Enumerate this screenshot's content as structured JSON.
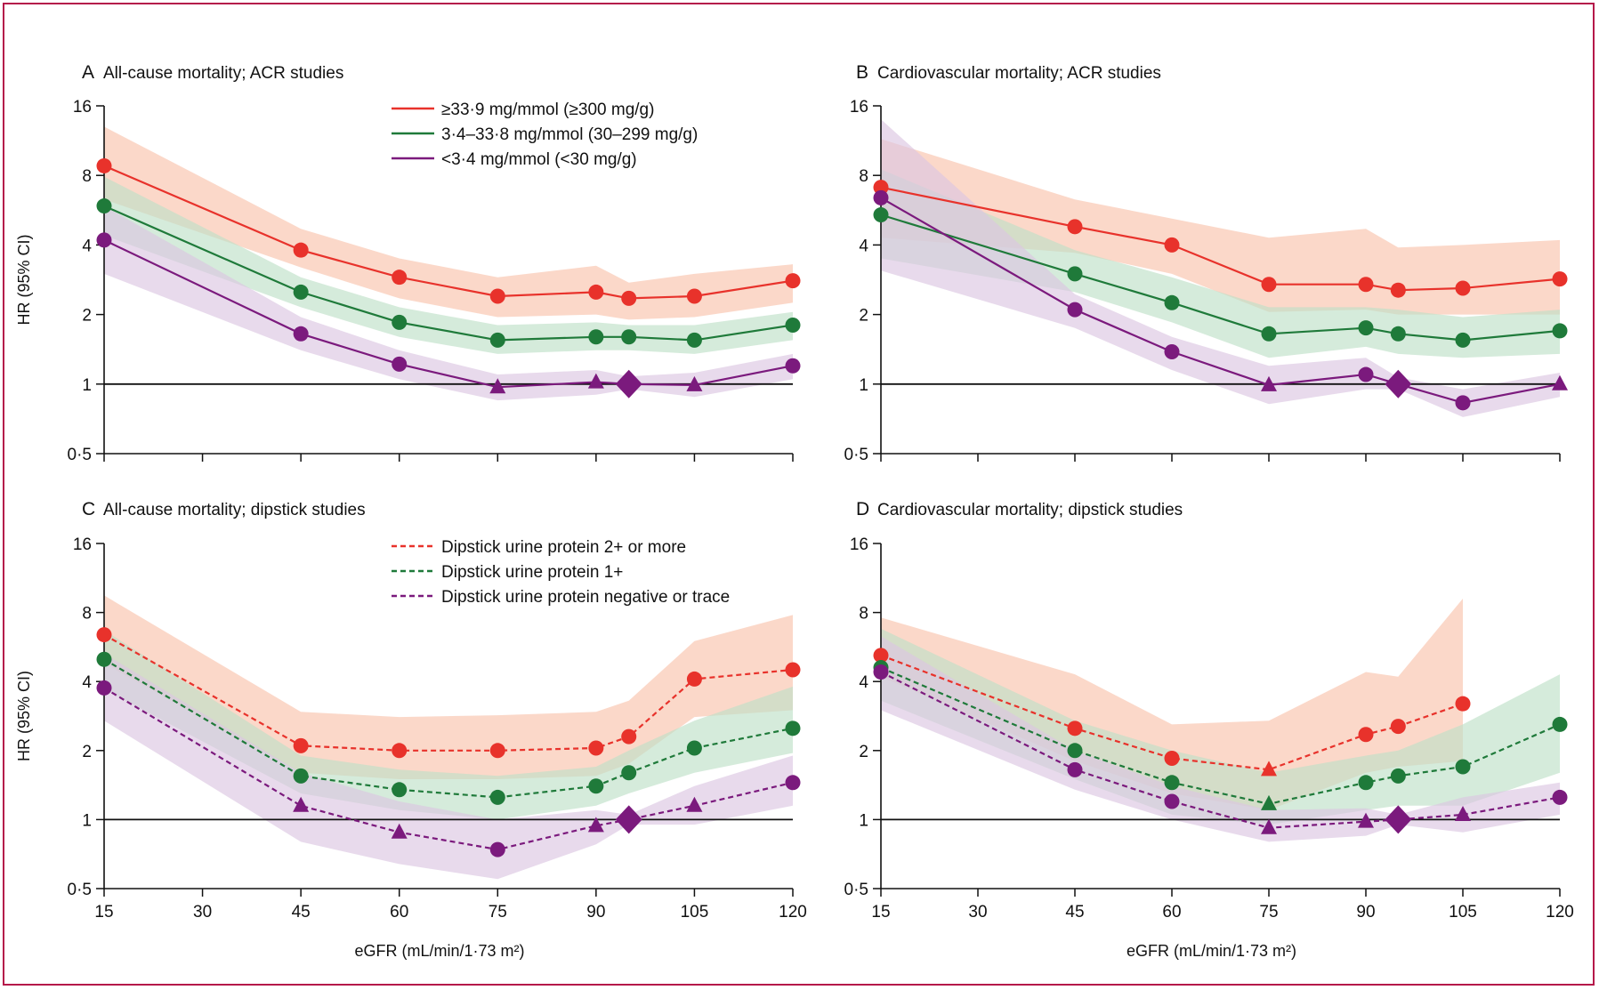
{
  "figure": {
    "border_color": "#b5194a",
    "axis_xlabel": "eGFR (mL/min/1·73 m²)",
    "axis_ylabel": "HR (95% CI)"
  },
  "chart_data": [
    {
      "panel": "A",
      "type": "line",
      "title": "All-cause mortality; ACR studies",
      "xlabel": "",
      "ylabel": "HR (95% CI)",
      "xlim": [
        15,
        120
      ],
      "ylim": [
        0.5,
        16
      ],
      "yscale": "log2",
      "xticks": [
        15,
        30,
        45,
        60,
        75,
        90,
        105,
        120
      ],
      "xtick_labels": [],
      "yticks": [
        0.5,
        1,
        2,
        4,
        8,
        16
      ],
      "ytick_labels": [
        "0·5",
        "1",
        "2",
        "4",
        "8",
        "16"
      ],
      "reference_line": 1,
      "legend_position": "top-right",
      "reference_point": {
        "x": 95,
        "y": 1
      },
      "series": [
        {
          "name": "≥33·9 mg/mmol (≥300 mg/g)",
          "color": "#e8322b",
          "band_color": "#f9c3ac",
          "dash": false,
          "marker": "circle",
          "x": [
            15,
            45,
            60,
            75,
            90,
            95,
            105,
            120
          ],
          "y": [
            8.8,
            3.8,
            2.9,
            2.4,
            2.5,
            2.35,
            2.4,
            2.8
          ],
          "lower": [
            6.3,
            3.2,
            2.35,
            1.95,
            2.0,
            1.9,
            1.95,
            2.25
          ],
          "upper": [
            13.0,
            4.7,
            3.5,
            2.9,
            3.25,
            2.75,
            3.0,
            3.3
          ]
        },
        {
          "name": "3·4–33·8 mg/mmol (30–299 mg/g)",
          "color": "#1f7a3a",
          "band_color": "#bfe0c8",
          "dash": false,
          "marker": "circle",
          "x": [
            15,
            45,
            60,
            75,
            90,
            95,
            105,
            120
          ],
          "y": [
            5.9,
            2.5,
            1.85,
            1.55,
            1.6,
            1.6,
            1.55,
            1.8
          ],
          "lower": [
            4.4,
            2.15,
            1.6,
            1.35,
            1.4,
            1.4,
            1.35,
            1.55
          ],
          "upper": [
            7.9,
            2.9,
            2.15,
            1.8,
            1.85,
            1.8,
            1.8,
            2.05
          ]
        },
        {
          "name": "<3·4 mg/mmol (<30 mg/g)",
          "color": "#7b1a7d",
          "band_color": "#dcc6e2",
          "dash": false,
          "x": [
            15,
            45,
            60,
            75,
            90,
            95,
            105,
            120
          ],
          "y": [
            4.2,
            1.65,
            1.22,
            0.97,
            1.02,
            1.0,
            0.99,
            1.2
          ],
          "markers": [
            "circle",
            "circle",
            "circle",
            "triangle",
            "triangle",
            "diamond",
            "triangle",
            "circle"
          ],
          "lower": [
            3.0,
            1.4,
            1.05,
            0.85,
            0.9,
            0.95,
            0.88,
            1.05
          ],
          "upper": [
            5.9,
            1.95,
            1.4,
            1.1,
            1.15,
            1.08,
            1.12,
            1.35
          ]
        }
      ]
    },
    {
      "panel": "B",
      "type": "line",
      "title": "Cardiovascular mortality; ACR studies",
      "xlabel": "",
      "ylabel": "",
      "xlim": [
        15,
        120
      ],
      "ylim": [
        0.5,
        16
      ],
      "yscale": "log2",
      "xticks": [
        15,
        30,
        45,
        60,
        75,
        90,
        105,
        120
      ],
      "xtick_labels": [],
      "yticks": [
        0.5,
        1,
        2,
        4,
        8,
        16
      ],
      "ytick_labels": [
        "0·5",
        "1",
        "2",
        "4",
        "8",
        "16"
      ],
      "reference_line": 1,
      "reference_point": {
        "x": 95,
        "y": 1
      },
      "series": [
        {
          "name": "≥33·9 mg/mmol (≥300 mg/g)",
          "color": "#e8322b",
          "band_color": "#f9c3ac",
          "dash": false,
          "marker": "circle",
          "x": [
            15,
            45,
            60,
            75,
            90,
            95,
            105,
            120
          ],
          "y": [
            7.1,
            4.8,
            4.0,
            2.7,
            2.7,
            2.55,
            2.6,
            2.85
          ],
          "lower": [
            4.3,
            3.7,
            3.0,
            2.05,
            2.1,
            2.0,
            2.0,
            2.0
          ],
          "upper": [
            11.5,
            6.3,
            5.2,
            4.3,
            4.7,
            3.9,
            4.0,
            4.2
          ]
        },
        {
          "name": "3·4–33·8 mg/mmol (30–299 mg/g)",
          "color": "#1f7a3a",
          "band_color": "#bfe0c8",
          "dash": false,
          "marker": "circle",
          "x": [
            15,
            45,
            60,
            75,
            90,
            95,
            105,
            120
          ],
          "y": [
            5.4,
            3.0,
            2.25,
            1.65,
            1.75,
            1.65,
            1.55,
            1.7
          ],
          "lower": [
            3.5,
            2.5,
            1.85,
            1.3,
            1.45,
            1.35,
            1.3,
            1.35
          ],
          "upper": [
            8.5,
            3.8,
            2.9,
            2.15,
            2.15,
            2.1,
            1.95,
            2.1
          ]
        },
        {
          "name": "<3·4 mg/mmol (<30 mg/g)",
          "color": "#7b1a7d",
          "band_color": "#dcc6e2",
          "dash": false,
          "x": [
            15,
            45,
            60,
            75,
            90,
            95,
            105,
            120
          ],
          "y": [
            6.4,
            2.1,
            1.38,
            0.99,
            1.1,
            1.0,
            0.83,
            1.0
          ],
          "markers": [
            "circle",
            "circle",
            "circle",
            "triangle",
            "circle",
            "diamond",
            "circle",
            "triangle"
          ],
          "lower": [
            3.1,
            1.75,
            1.15,
            0.82,
            0.95,
            0.95,
            0.72,
            0.88
          ],
          "upper": [
            14.0,
            2.45,
            1.6,
            1.2,
            1.3,
            1.07,
            0.95,
            1.12
          ]
        }
      ]
    },
    {
      "panel": "C",
      "type": "line",
      "title": "All-cause mortality; dipstick studies",
      "xlabel": "eGFR (mL/min/1·73 m²)",
      "ylabel": "HR (95% CI)",
      "xlim": [
        15,
        120
      ],
      "ylim": [
        0.5,
        16
      ],
      "yscale": "log2",
      "xticks": [
        15,
        30,
        45,
        60,
        75,
        90,
        105,
        120
      ],
      "xtick_labels": [
        "15",
        "30",
        "45",
        "60",
        "75",
        "90",
        "105",
        "120"
      ],
      "yticks": [
        0.5,
        1,
        2,
        4,
        8,
        16
      ],
      "ytick_labels": [
        "0·5",
        "1",
        "2",
        "4",
        "8",
        "16"
      ],
      "reference_line": 1,
      "legend_position": "top-right",
      "reference_point": {
        "x": 95,
        "y": 1
      },
      "series": [
        {
          "name": "Dipstick urine protein 2+ or more",
          "color": "#e8322b",
          "band_color": "#f9c3ac",
          "dash": true,
          "marker": "circle",
          "x": [
            15,
            45,
            60,
            75,
            90,
            95,
            105,
            120
          ],
          "y": [
            6.4,
            2.1,
            2.0,
            2.0,
            2.05,
            2.3,
            4.1,
            4.5
          ],
          "lower": [
            4.8,
            1.6,
            1.5,
            1.5,
            1.55,
            1.75,
            2.8,
            3.0
          ],
          "upper": [
            9.5,
            2.95,
            2.8,
            2.85,
            2.95,
            3.3,
            6.0,
            7.8
          ]
        },
        {
          "name": "Dipstick urine protein 1+",
          "color": "#1f7a3a",
          "band_color": "#bfe0c8",
          "dash": true,
          "marker": "circle",
          "x": [
            15,
            45,
            60,
            75,
            90,
            95,
            105,
            120
          ],
          "y": [
            5.0,
            1.55,
            1.35,
            1.25,
            1.4,
            1.6,
            2.05,
            2.5
          ],
          "lower": [
            3.7,
            1.3,
            1.1,
            1.0,
            1.15,
            1.3,
            1.6,
            1.95
          ],
          "upper": [
            6.7,
            1.9,
            1.65,
            1.55,
            1.7,
            2.0,
            2.7,
            3.8
          ]
        },
        {
          "name": "Dipstick urine protein negative or trace",
          "color": "#7b1a7d",
          "band_color": "#dcc6e2",
          "dash": true,
          "x": [
            15,
            45,
            60,
            75,
            90,
            95,
            105,
            120
          ],
          "y": [
            3.75,
            1.15,
            0.88,
            0.74,
            0.94,
            1.0,
            1.15,
            1.45
          ],
          "markers": [
            "circle",
            "triangle",
            "triangle",
            "circle",
            "triangle",
            "diamond",
            "triangle",
            "circle"
          ],
          "lower": [
            2.7,
            0.8,
            0.64,
            0.55,
            0.78,
            0.95,
            0.95,
            1.15
          ],
          "upper": [
            5.3,
            1.6,
            1.2,
            1.0,
            1.1,
            1.05,
            1.4,
            1.9
          ]
        }
      ]
    },
    {
      "panel": "D",
      "type": "line",
      "title": "Cardiovascular mortality; dipstick studies",
      "xlabel": "eGFR (mL/min/1·73 m²)",
      "ylabel": "",
      "xlim": [
        15,
        120
      ],
      "ylim": [
        0.5,
        16
      ],
      "yscale": "log2",
      "xticks": [
        15,
        30,
        45,
        60,
        75,
        90,
        105,
        120
      ],
      "xtick_labels": [
        "15",
        "30",
        "45",
        "60",
        "75",
        "90",
        "105",
        "120"
      ],
      "yticks": [
        0.5,
        1,
        2,
        4,
        8,
        16
      ],
      "ytick_labels": [
        "0·5",
        "1",
        "2",
        "4",
        "8",
        "16"
      ],
      "reference_line": 1,
      "reference_point": {
        "x": 95,
        "y": 1
      },
      "series": [
        {
          "name": "Dipstick urine protein 2+ or more",
          "color": "#e8322b",
          "band_color": "#f9c3ac",
          "dash": true,
          "x": [
            15,
            45,
            60,
            75,
            90,
            95,
            105
          ],
          "y": [
            5.2,
            2.5,
            1.85,
            1.65,
            2.35,
            2.55,
            3.2
          ],
          "markers": [
            "circle",
            "circle",
            "circle",
            "triangle",
            "circle",
            "circle",
            "circle"
          ],
          "lower": [
            4.2,
            1.8,
            1.3,
            1.1,
            1.6,
            1.7,
            1.8
          ],
          "upper": [
            7.6,
            4.3,
            2.6,
            2.7,
            4.4,
            4.2,
            9.2
          ]
        },
        {
          "name": "Dipstick urine protein 1+",
          "color": "#1f7a3a",
          "band_color": "#bfe0c8",
          "dash": true,
          "x": [
            15,
            45,
            60,
            75,
            90,
            95,
            105,
            120
          ],
          "y": [
            4.6,
            2.0,
            1.45,
            1.17,
            1.45,
            1.55,
            1.7,
            2.6
          ],
          "markers": [
            "circle",
            "circle",
            "circle",
            "triangle",
            "circle",
            "circle",
            "circle",
            "circle"
          ],
          "lower": [
            3.3,
            1.5,
            1.05,
            0.95,
            1.1,
            1.15,
            1.15,
            1.6
          ],
          "upper": [
            6.8,
            2.7,
            2.0,
            1.6,
            1.9,
            2.0,
            2.6,
            4.3
          ]
        },
        {
          "name": "Dipstick urine protein negative or trace",
          "color": "#7b1a7d",
          "band_color": "#dcc6e2",
          "dash": true,
          "x": [
            15,
            45,
            60,
            75,
            90,
            95,
            105,
            120
          ],
          "y": [
            4.4,
            1.65,
            1.2,
            0.92,
            0.98,
            1.0,
            1.05,
            1.25
          ],
          "markers": [
            "circle",
            "circle",
            "circle",
            "triangle",
            "triangle",
            "diamond",
            "triangle",
            "circle"
          ],
          "lower": [
            3.0,
            1.35,
            1.0,
            0.8,
            0.85,
            0.95,
            0.88,
            1.05
          ],
          "upper": [
            6.3,
            2.0,
            1.4,
            1.1,
            1.12,
            1.05,
            1.25,
            1.45
          ]
        }
      ]
    }
  ]
}
